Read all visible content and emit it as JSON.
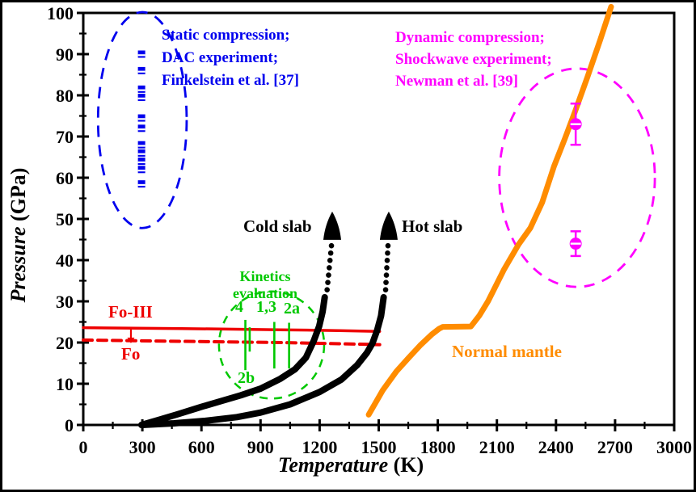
{
  "figure_colors": {
    "static_blue": "#0000ee",
    "dynamic_magenta": "#ff00ff",
    "mantle_orange": "#ff8c00",
    "fo_red": "#ee0000",
    "kinetics_green": "#00c800",
    "slab_black": "#000000"
  },
  "chart_data": {
    "type": "line",
    "xlabel_main": "Temperature",
    "xlabel_unit": " (K)",
    "ylabel_main": "Pressure",
    "ylabel_unit": " (GPa)",
    "x_range": [
      0,
      3000
    ],
    "y_range": [
      0,
      100
    ],
    "x_ticks": [
      0,
      300,
      600,
      900,
      1200,
      1500,
      1800,
      2100,
      2400,
      2700,
      3000
    ],
    "x_minor_step": 150,
    "y_ticks": [
      0,
      10,
      20,
      30,
      40,
      50,
      60,
      70,
      80,
      90,
      100
    ],
    "y_minor_step": 5,
    "grid": false,
    "legend_position": "none",
    "series": [
      {
        "name": "Fo-III boundary",
        "key": "fo3-line",
        "color": "#ee0000",
        "width": 3.5,
        "dash": null,
        "points": [
          [
            0,
            23.6
          ],
          [
            500,
            23.4
          ],
          [
            1000,
            23.1
          ],
          [
            1300,
            22.9
          ],
          [
            1505,
            22.7
          ]
        ]
      },
      {
        "name": "Fo boundary",
        "key": "fo-line",
        "color": "#ee0000",
        "width": 4,
        "dash": "11,7",
        "points": [
          [
            0,
            20.6
          ],
          [
            500,
            20.3
          ],
          [
            1000,
            20.0
          ],
          [
            1300,
            19.7
          ],
          [
            1505,
            19.5
          ]
        ]
      },
      {
        "name": "Cold slab geotherm",
        "key": "cold-slab-curve",
        "color": "#000000",
        "width": 8,
        "dash": null,
        "points": [
          [
            295,
            0
          ],
          [
            380,
            1.2
          ],
          [
            480,
            2.6
          ],
          [
            600,
            4.4
          ],
          [
            700,
            5.8
          ],
          [
            800,
            7.2
          ],
          [
            900,
            8.8
          ],
          [
            1000,
            11.2
          ],
          [
            1075,
            13.5
          ],
          [
            1130,
            16.3
          ],
          [
            1170,
            20.4
          ],
          [
            1198,
            24
          ],
          [
            1215,
            27.5
          ],
          [
            1226,
            31
          ]
        ]
      },
      {
        "name": "Hot slab geotherm",
        "key": "hot-slab-curve",
        "color": "#000000",
        "width": 8,
        "dash": null,
        "points": [
          [
            300,
            0
          ],
          [
            460,
            0.4
          ],
          [
            620,
            1.0
          ],
          [
            780,
            1.9
          ],
          [
            900,
            3.0
          ],
          [
            1050,
            5.0
          ],
          [
            1200,
            8.0
          ],
          [
            1310,
            11
          ],
          [
            1390,
            14.5
          ],
          [
            1440,
            17.5
          ],
          [
            1468,
            19.8
          ],
          [
            1492,
            23
          ],
          [
            1512,
            26.5
          ],
          [
            1525,
            31
          ]
        ]
      },
      {
        "name": "Normal mantle geotherm",
        "key": "normal-mantle-curve",
        "color": "#ff8c00",
        "width": 7,
        "dash": null,
        "points": [
          [
            1449,
            2.5
          ],
          [
            1520,
            8.4
          ],
          [
            1590,
            13
          ],
          [
            1650,
            16.2
          ],
          [
            1710,
            19.3
          ],
          [
            1770,
            22
          ],
          [
            1808,
            23.4
          ],
          [
            1825,
            23.8
          ],
          [
            1968,
            23.9
          ],
          [
            2010,
            26.5
          ],
          [
            2055,
            30
          ],
          [
            2137,
            37.8
          ],
          [
            2210,
            43.8
          ],
          [
            2270,
            47.8
          ],
          [
            2330,
            54
          ],
          [
            2390,
            62.8
          ],
          [
            2445,
            69.5
          ],
          [
            2500,
            76.5
          ],
          [
            2560,
            84.5
          ],
          [
            2625,
            93.5
          ],
          [
            2680,
            101.5
          ]
        ]
      }
    ],
    "dotted_arrow_segments": [
      {
        "key": "cold-slab-dots",
        "from": [
          1238,
          32.8
        ],
        "to": [
          1260,
          43.5
        ],
        "dots": 7,
        "arrow_tip": [
          1264,
          51.8
        ]
      },
      {
        "key": "hot-slab-dots",
        "from": [
          1535,
          32.8
        ],
        "to": [
          1547,
          43.5
        ],
        "dots": 7,
        "arrow_tip": [
          1551,
          51.8
        ]
      }
    ],
    "scatter": [
      {
        "name": "Static compression, DAC, Finkelstein et al. [37]",
        "key": "finkelstein-squares",
        "symbol": "half-square",
        "color": "#0000ee",
        "x": 296,
        "pressures": [
          90,
          86,
          81.5,
          79.5,
          74.5,
          72,
          68,
          66,
          64,
          62,
          58.5
        ]
      },
      {
        "name": "Dynamic compression, shockwave, Newman et al. [39]",
        "key": "newman-points",
        "symbol": "half-circle",
        "color": "#ff00ff",
        "points": [
          {
            "x": 2500,
            "y": 73,
            "err": 5
          },
          {
            "x": 2500,
            "y": 44,
            "err": 3
          }
        ]
      }
    ],
    "ellipses": [
      {
        "key": "static-ellipse",
        "cx": 300,
        "cy": 74,
        "rx_k": 225,
        "ry_gpa": 26.2,
        "color": "#0000ee",
        "dash": "14,10",
        "width": 2.8
      },
      {
        "key": "dynamic-ellipse",
        "cx": 2507,
        "cy": 60,
        "rx_k": 395,
        "ry_gpa": 26.5,
        "color": "#ff00ff",
        "dash": "13,10",
        "width": 2.8
      },
      {
        "key": "kinetics-ellipse",
        "cx": 956,
        "cy": 19.4,
        "rx_k": 267,
        "ry_gpa": 13,
        "color": "#00c800",
        "dash": "10,8",
        "width": 2.5
      }
    ],
    "kinetics_lines": [
      {
        "x": 823,
        "p_top": 25.5,
        "p_bottom": 13.3
      },
      {
        "x": 845,
        "p_top": 23.7,
        "p_bottom": 17.8
      },
      {
        "x": 970,
        "p_top": 25.0,
        "p_bottom": 13.7
      },
      {
        "x": 1045,
        "p_top": 24.8,
        "p_bottom": 13.7
      }
    ],
    "fo_transition_arrow": {
      "x": 242,
      "p_from": 23.2,
      "p_to": 21.0
    }
  },
  "annotations": {
    "static_line1": "Static compression;",
    "static_line2": "DAC experiment;",
    "static_line3": "Finkelstein et al. [37]",
    "dynamic_line1": "Dynamic compression;",
    "dynamic_line2": "Shockwave experiment;",
    "dynamic_line3": "Newman et al. [39]",
    "cold_slab": "Cold slab",
    "hot_slab": "Hot slab",
    "normal_mantle": "Normal mantle",
    "fo3": "Fo-III",
    "fo": "Fo",
    "kinetics_line1": "Kinetics",
    "kinetics_line2": "evaluation",
    "k4": "4",
    "k13": "1,3",
    "k2a": "2a",
    "k2b": "2b"
  },
  "axis": {
    "xlabel_main": "Temperature",
    "xlabel_unit": " (K)",
    "ylabel_main": "Pressure",
    "ylabel_unit": " (GPa)"
  }
}
